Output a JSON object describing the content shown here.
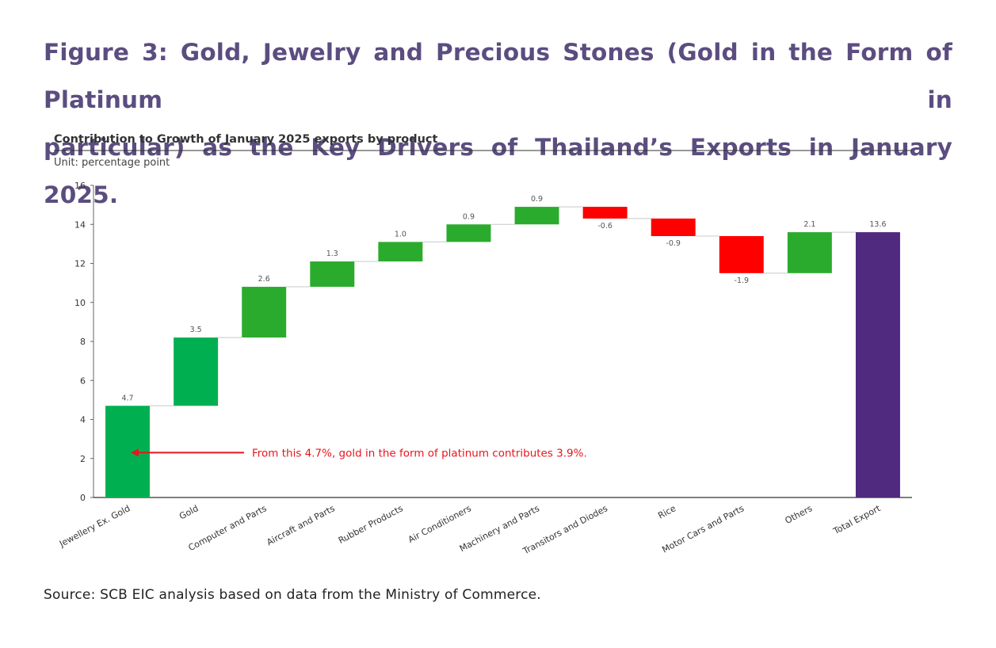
{
  "figure": {
    "title_line1": "Figure 3: Gold, Jewelry and Precious Stones (Gold in the Form of Platinum in",
    "title_line2": "particular) as the Key Drivers of Thailand’s Exports in January 2025.",
    "source": "Source: SCB EIC analysis based on data from the Ministry of Commerce."
  },
  "chart_data": {
    "type": "bar",
    "subtype": "waterfall",
    "title": "Contribution to Growth of January 2025 exports by product",
    "unit_label": "Unit: percentage point",
    "xlabel": "",
    "ylabel": "",
    "ylim": [
      0,
      16
    ],
    "yticks": [
      0,
      2,
      4,
      6,
      8,
      10,
      12,
      14,
      16
    ],
    "grid": false,
    "categories": [
      "Jewellery Ex. Gold",
      "Gold",
      "Computer and Parts",
      "Aircraft and Parts",
      "Rubber Products",
      "Air Conditioners",
      "Machinery and Parts",
      "Transitors and Diodes",
      "Rice",
      "Motor Cars and Parts",
      "Others",
      "Total Export"
    ],
    "values": [
      4.7,
      3.5,
      2.6,
      1.3,
      1.0,
      0.9,
      0.9,
      -0.6,
      -0.9,
      -1.9,
      2.1,
      13.6
    ],
    "value_labels": [
      "4.7",
      "3.5",
      "2.6",
      "1.3",
      "1.0",
      "0.9",
      "0.9",
      "-0.6",
      "-0.9",
      "-1.9",
      "2.1",
      "13.6"
    ],
    "total_index": 11,
    "colors": {
      "first_two": "#00b050",
      "increase": "#2bab2e",
      "decrease": "#ff0000",
      "total": "#4f2a7f",
      "annotation": "#e8141c",
      "title": "#5b4d80"
    },
    "annotation": {
      "text": "From this 4.7%, gold in the form of platinum contributes 3.9%.",
      "points_to": "Jewellery Ex. Gold",
      "at_value": 2.3
    }
  }
}
